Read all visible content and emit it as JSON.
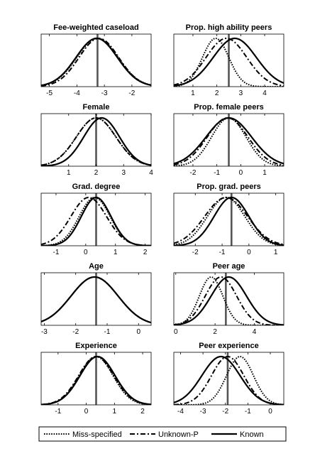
{
  "series_styles": [
    {
      "name": "Miss-specified",
      "color": "#000000",
      "dash": "dotted"
    },
    {
      "name": "Unknown-P",
      "color": "#000000",
      "dash": "dashdot"
    },
    {
      "name": "Known",
      "color": "#000000",
      "dash": "solid"
    }
  ],
  "legend": {
    "placement": "bottom",
    "entries": [
      "Miss-specified",
      "Unknown-P",
      "Known"
    ]
  },
  "chart_data": [
    {
      "type": "line",
      "title": "Fee-weighted caseload",
      "xlim": [
        -5.3,
        -1.3
      ],
      "ylim": [
        0,
        1
      ],
      "grid": false,
      "xticks": [
        -5,
        -4,
        -3,
        -2
      ],
      "vline": -3.25,
      "series": [
        {
          "name": "Miss-specified",
          "center": -3.25,
          "sd": 0.75,
          "skew": 0
        },
        {
          "name": "Unknown-P",
          "center": -3.2,
          "sd": 0.72,
          "skew": 0
        },
        {
          "name": "Known",
          "center": -3.28,
          "sd": 0.75,
          "skew": 0
        }
      ]
    },
    {
      "type": "line",
      "title": "Prop. high ability peers",
      "xlim": [
        0.2,
        4.8
      ],
      "ylim": [
        0,
        1
      ],
      "grid": false,
      "xticks": [
        1,
        2,
        3,
        4
      ],
      "vline": 2.5,
      "series": [
        {
          "name": "Miss-specified",
          "center": 1.95,
          "sd": 0.55,
          "skew": 0
        },
        {
          "name": "Unknown-P",
          "center": 2.4,
          "sd": 0.85,
          "skew": 0
        },
        {
          "name": "Known",
          "center": 2.75,
          "sd": 0.9,
          "skew": 0
        }
      ]
    },
    {
      "type": "line",
      "title": "Female",
      "xlim": [
        0,
        4
      ],
      "ylim": [
        0,
        1
      ],
      "grid": false,
      "xticks": [
        1,
        2,
        3,
        4
      ],
      "vline": 2,
      "series": [
        {
          "name": "Miss-specified",
          "center": 2.0,
          "sd": 0.72,
          "skew": 0
        },
        {
          "name": "Unknown-P",
          "center": 2.0,
          "sd": 0.72,
          "skew": 0
        },
        {
          "name": "Known",
          "center": 2.2,
          "sd": 0.65,
          "skew": 0
        }
      ]
    },
    {
      "type": "line",
      "title": "Prop. female peers",
      "xlim": [
        -2.8,
        1.8
      ],
      "ylim": [
        0,
        1
      ],
      "grid": false,
      "xticks": [
        -2,
        -1,
        0,
        1
      ],
      "vline": -0.5,
      "series": [
        {
          "name": "Miss-specified",
          "center": -0.5,
          "sd": 0.72,
          "skew": 0
        },
        {
          "name": "Unknown-P",
          "center": -0.55,
          "sd": 0.85,
          "skew": 0
        },
        {
          "name": "Known",
          "center": -0.5,
          "sd": 0.95,
          "skew": 0
        }
      ]
    },
    {
      "type": "line",
      "title": "Grad. degree",
      "xlim": [
        -1.5,
        2.2
      ],
      "ylim": [
        0,
        1
      ],
      "grid": false,
      "xticks": [
        -1,
        0,
        1,
        2
      ],
      "vline": 0.35,
      "series": [
        {
          "name": "Miss-specified",
          "center": 0.3,
          "sd": 0.52,
          "skew": 0
        },
        {
          "name": "Unknown-P",
          "center": 0.1,
          "sd": 0.6,
          "skew": 0
        },
        {
          "name": "Known",
          "center": 0.35,
          "sd": 0.5,
          "skew": 0
        }
      ]
    },
    {
      "type": "line",
      "title": "Prop. grad. peers",
      "xlim": [
        -2.8,
        1.3
      ],
      "ylim": [
        0,
        1
      ],
      "grid": false,
      "xticks": [
        -2,
        -1,
        0,
        1
      ],
      "vline": -0.65,
      "series": [
        {
          "name": "Miss-specified",
          "center": -0.85,
          "sd": 0.7,
          "skew": 0
        },
        {
          "name": "Unknown-P",
          "center": -0.85,
          "sd": 0.8,
          "skew": 0
        },
        {
          "name": "Known",
          "center": -0.65,
          "sd": 0.65,
          "skew": 0
        }
      ]
    },
    {
      "type": "line",
      "title": "Age",
      "xlim": [
        -3.1,
        0.4
      ],
      "ylim": [
        0,
        1
      ],
      "grid": false,
      "xticks": [
        -3,
        -2,
        -1,
        0
      ],
      "vline": -1.35,
      "series": [
        {
          "name": "Miss-specified",
          "center": -1.4,
          "sd": 0.75,
          "skew": 0
        },
        {
          "name": "Unknown-P",
          "center": -1.4,
          "sd": 0.75,
          "skew": 0
        },
        {
          "name": "Known",
          "center": -1.4,
          "sd": 0.75,
          "skew": 0
        }
      ]
    },
    {
      "type": "line",
      "title": "Peer age",
      "xlim": [
        -0.1,
        5.5
      ],
      "ylim": [
        0,
        1
      ],
      "grid": false,
      "xticks": [
        0,
        2,
        4
      ],
      "vline": 2.55,
      "series": [
        {
          "name": "Miss-specified",
          "center": 1.8,
          "sd": 0.6,
          "skew": 0
        },
        {
          "name": "Unknown-P",
          "center": 2.3,
          "sd": 0.8,
          "skew": 0
        },
        {
          "name": "Known",
          "center": 2.7,
          "sd": 0.9,
          "skew": 0
        }
      ]
    },
    {
      "type": "line",
      "title": "Experience",
      "xlim": [
        -1.6,
        2.3
      ],
      "ylim": [
        0,
        1
      ],
      "grid": false,
      "xticks": [
        -1,
        0,
        1,
        2
      ],
      "vline": 0.35,
      "series": [
        {
          "name": "Miss-specified",
          "center": 0.35,
          "sd": 0.6,
          "skew": 0
        },
        {
          "name": "Unknown-P",
          "center": 0.35,
          "sd": 0.62,
          "skew": 0
        },
        {
          "name": "Known",
          "center": 0.4,
          "sd": 0.62,
          "skew": 0
        }
      ]
    },
    {
      "type": "line",
      "title": "Peer experience",
      "xlim": [
        -4.3,
        0.6
      ],
      "ylim": [
        0,
        1
      ],
      "grid": false,
      "xticks": [
        -4,
        -3,
        -2,
        -1,
        0
      ],
      "vline": -1.9,
      "series": [
        {
          "name": "Miss-specified",
          "center": -1.35,
          "sd": 0.6,
          "skew": 0
        },
        {
          "name": "Unknown-P",
          "center": -1.9,
          "sd": 0.72,
          "skew": 0
        },
        {
          "name": "Known",
          "center": -2.2,
          "sd": 0.85,
          "skew": 0
        }
      ]
    }
  ]
}
